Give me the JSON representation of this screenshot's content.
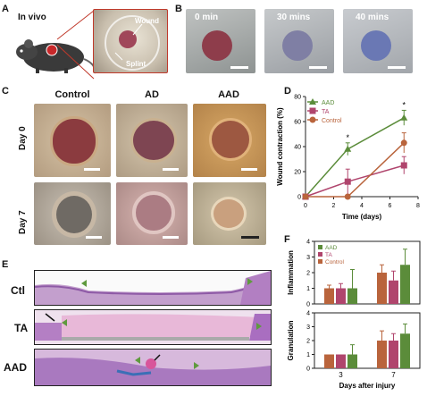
{
  "panels": {
    "a": {
      "label": "A",
      "invivo": "In vivo",
      "wound": "Wound",
      "splint": "Splint"
    },
    "b": {
      "label": "B",
      "times": [
        "0 min",
        "30 mins",
        "40 mins"
      ]
    },
    "c": {
      "label": "C",
      "columns": [
        "Control",
        "AD",
        "AAD"
      ],
      "rows": [
        "Day 0",
        "Day 7"
      ]
    },
    "d": {
      "label": "D"
    },
    "e": {
      "label": "E",
      "rows": [
        "Ctl",
        "TA",
        "AAD"
      ]
    },
    "f": {
      "label": "F"
    }
  },
  "colors": {
    "aad": "#5b8c3a",
    "ta": "#b0456d",
    "control": "#b9643c"
  },
  "chart_data": [
    {
      "type": "line",
      "panel": "D",
      "xlabel": "Time (days)",
      "ylabel": "Wound contraction (%)",
      "xlim": [
        0,
        8
      ],
      "ylim": [
        0,
        80
      ],
      "xticks": [
        0,
        2,
        4,
        6,
        8
      ],
      "yticks": [
        0,
        20,
        40,
        60,
        80
      ],
      "legend": "top-left",
      "x": [
        0,
        3,
        7
      ],
      "series": [
        {
          "name": "AAD",
          "values": [
            0,
            38,
            63
          ],
          "err": [
            0,
            5,
            6
          ]
        },
        {
          "name": "TA",
          "values": [
            0,
            12,
            25
          ],
          "err": [
            0,
            10,
            7
          ]
        },
        {
          "name": "Control",
          "values": [
            0,
            0,
            43
          ],
          "err": [
            0,
            0,
            8
          ]
        }
      ],
      "annotations": [
        "*",
        "*"
      ]
    },
    {
      "type": "bar",
      "panel": "F-top",
      "ylabel": "Inflammation",
      "ylim": [
        0,
        4
      ],
      "yticks": [
        0,
        1,
        2,
        3,
        4
      ],
      "categories": [
        "3",
        "7"
      ],
      "legend": "top-left",
      "series": [
        {
          "name": "Control",
          "values": [
            1,
            2
          ],
          "err": [
            0.2,
            0.5
          ]
        },
        {
          "name": "TA",
          "values": [
            1,
            1.5
          ],
          "err": [
            0.3,
            0.6
          ]
        },
        {
          "name": "AAD",
          "values": [
            1,
            2.5
          ],
          "err": [
            1.2,
            1.0
          ]
        }
      ]
    },
    {
      "type": "bar",
      "panel": "F-bottom",
      "ylabel": "Granulation",
      "ylim": [
        0,
        4
      ],
      "yticks": [
        0,
        1,
        2,
        3,
        4
      ],
      "categories": [
        "3",
        "7"
      ],
      "xlabel": "Days  after injury",
      "series": [
        {
          "name": "Control",
          "values": [
            1,
            2
          ],
          "err": [
            0,
            0.7
          ]
        },
        {
          "name": "TA",
          "values": [
            1,
            2
          ],
          "err": [
            0,
            0.5
          ]
        },
        {
          "name": "AAD",
          "values": [
            1,
            2.5
          ],
          "err": [
            0.7,
            0.7
          ]
        }
      ]
    }
  ]
}
